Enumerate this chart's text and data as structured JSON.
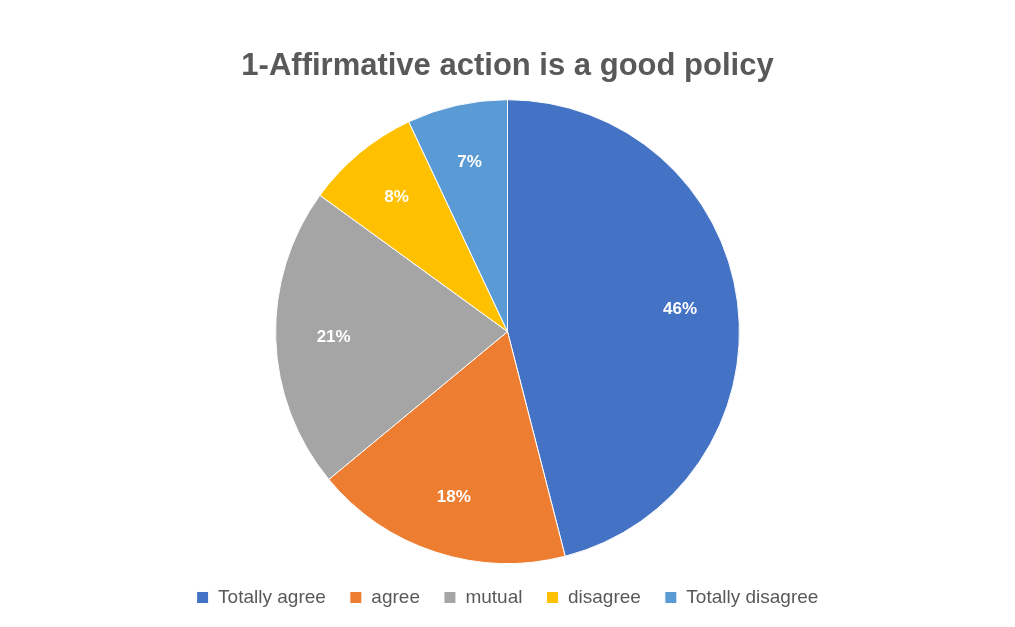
{
  "chart_data": {
    "type": "pie",
    "title": "1-Affirmative action is a good policy",
    "categories": [
      "Totally agree",
      "agree",
      "mutual",
      "disagree",
      "Totally disagree"
    ],
    "values": [
      46,
      18,
      21,
      8,
      7
    ],
    "colors": [
      "#4472c4",
      "#ed7d31",
      "#a5a5a5",
      "#ffc000",
      "#5b9bd5"
    ],
    "value_labels": [
      "46%",
      "18%",
      "21%",
      "8%",
      "7%"
    ],
    "legend": "bottom"
  }
}
